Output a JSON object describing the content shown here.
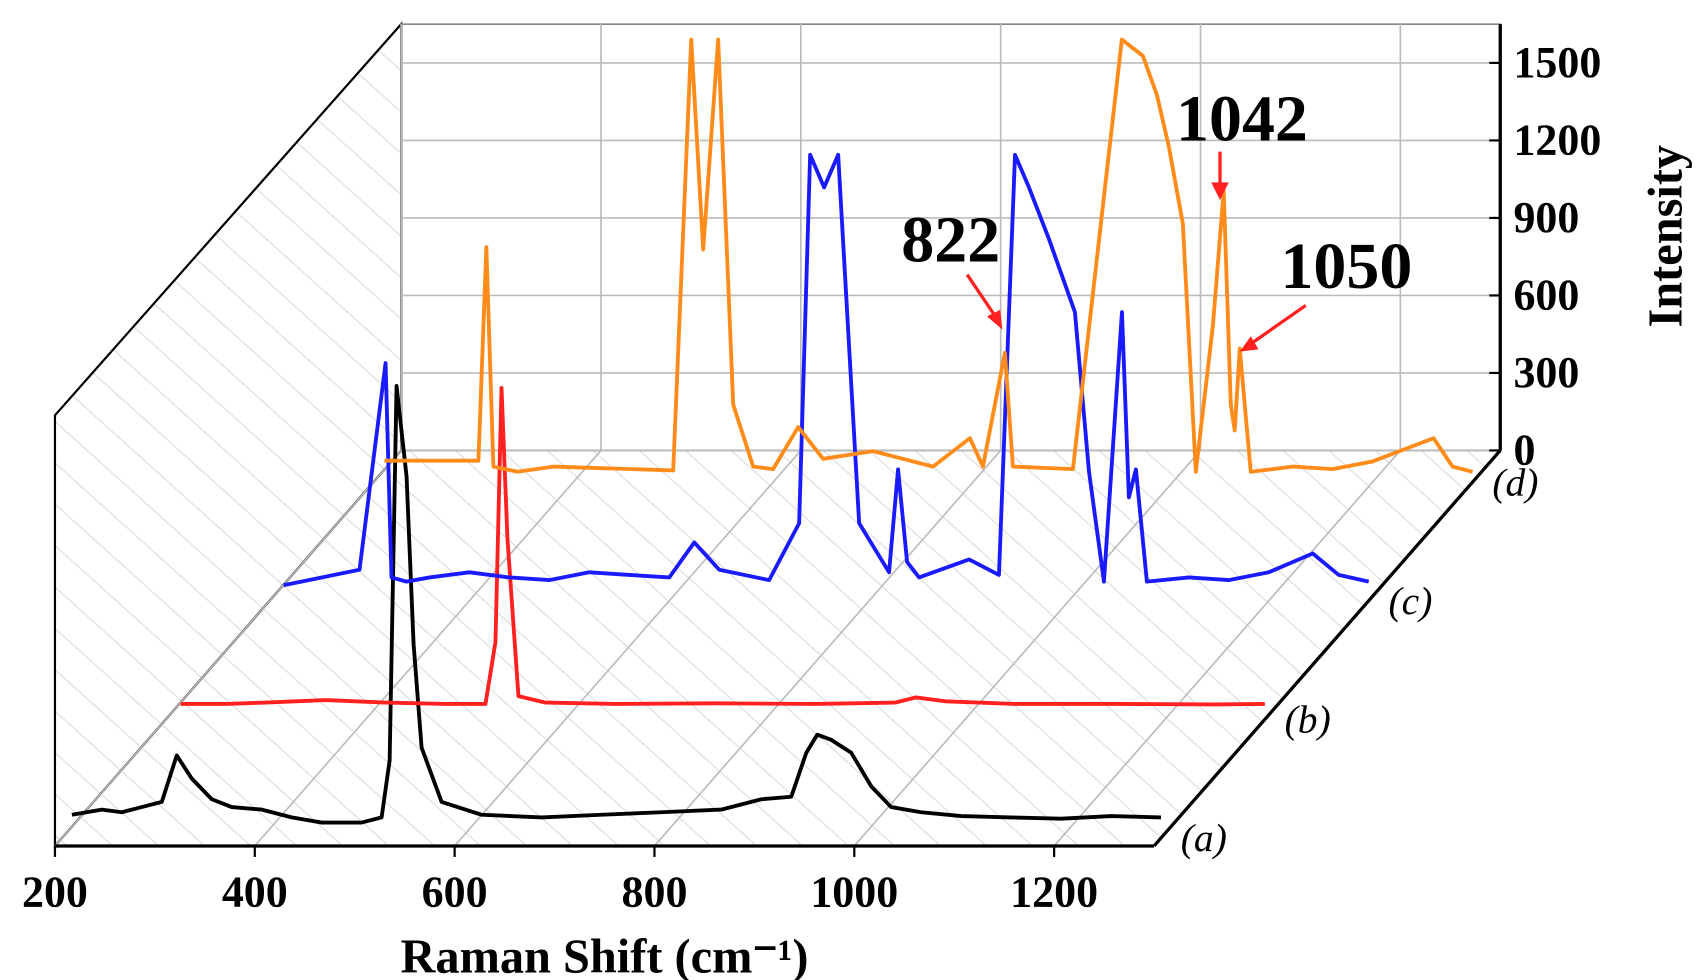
{
  "chart_data": {
    "type": "waterfall",
    "x_label": "Raman Shift (cm⁻¹)",
    "y_label": "Intensity",
    "xlim": [
      200,
      1300
    ],
    "xticks": [
      200,
      400,
      600,
      800,
      1000,
      1200
    ],
    "ylim": [
      0,
      1650
    ],
    "yticks": [
      0,
      300,
      600,
      900,
      1200,
      1500
    ],
    "grid": true,
    "annotations": [
      "822",
      "1042",
      "1050"
    ],
    "series": [
      {
        "name": "(a)",
        "color": "#000000",
        "x": [
          210,
          240,
          260,
          280,
          300,
          315,
          330,
          350,
          370,
          400,
          430,
          460,
          500,
          520,
          528,
          535,
          545,
          552,
          560,
          580,
          620,
          680,
          740,
          800,
          860,
          900,
          930,
          945,
          956,
          970,
          990,
          1010,
          1030,
          1060,
          1100,
          1150,
          1200,
          1250,
          1300
        ],
        "values": [
          90,
          110,
          100,
          120,
          140,
          320,
          230,
          150,
          120,
          110,
          80,
          60,
          60,
          80,
          300,
          1750,
          1400,
          750,
          350,
          140,
          90,
          80,
          90,
          100,
          110,
          150,
          160,
          330,
          400,
          380,
          330,
          200,
          120,
          100,
          85,
          80,
          75,
          85,
          80
        ]
      },
      {
        "name": "(b)",
        "color": "#ff2020",
        "x": [
          215,
          260,
          300,
          360,
          420,
          480,
          520,
          530,
          536,
          542,
          553,
          580,
          650,
          750,
          850,
          930,
          951,
          980,
          1050,
          1150,
          1250,
          1300
        ],
        "values": [
          60,
          60,
          65,
          75,
          65,
          60,
          60,
          300,
          1283,
          700,
          90,
          65,
          60,
          62,
          60,
          65,
          85,
          70,
          60,
          60,
          58,
          60
        ]
      },
      {
        "name": "(c)",
        "color": "#1a1aff",
        "x": [
          214,
          290,
          316,
          322,
          337,
          360,
          400,
          440,
          480,
          520,
          560,
          600,
          625,
          650,
          700,
          730,
          741,
          755,
          769,
          790,
          820,
          829,
          838,
          850,
          900,
          930,
          946,
          960,
          980,
          1006,
          1020,
          1035,
          1053,
          1060,
          1067,
          1078,
          1120,
          1160,
          1200,
          1244,
          1270,
          1300
        ],
        "values": [
          60,
          120,
          920,
          90,
          74,
          90,
          110,
          90,
          80,
          110,
          100,
          90,
          226,
          120,
          80,
          300,
          1726,
          1600,
          1726,
          300,
          110,
          508,
          150,
          90,
          160,
          100,
          1726,
          1600,
          1400,
          1117,
          500,
          74,
          1117,
          400,
          508,
          74,
          90,
          80,
          110,
          183,
          100,
          74
        ]
      },
      {
        "name": "(d)",
        "color": "#ff8c1a",
        "x": [
          211,
          260,
          305,
          313,
          320,
          344,
          380,
          420,
          460,
          500,
          518,
          530,
          545,
          560,
          580,
          600,
          625,
          650,
          700,
          760,
          797,
          810,
          832,
          840,
          900,
          949,
          970,
          984,
          996,
          1010,
          1023,
          1040,
          1051,
          1058,
          1062,
          1067,
          1072,
          1078,
          1120,
          1160,
          1200,
          1261,
          1280,
          1300
        ],
        "values": [
          83,
          83,
          83,
          909,
          60,
          40,
          60,
          55,
          50,
          45,
          1713,
          900,
          1713,
          300,
          60,
          50,
          213,
          90,
          120,
          60,
          170,
          60,
          500,
          60,
          50,
          1713,
          1650,
          1500,
          1300,
          1000,
          40,
          600,
          1126,
          300,
          200,
          517,
          300,
          40,
          60,
          50,
          80,
          170,
          60,
          40
        ]
      }
    ]
  }
}
